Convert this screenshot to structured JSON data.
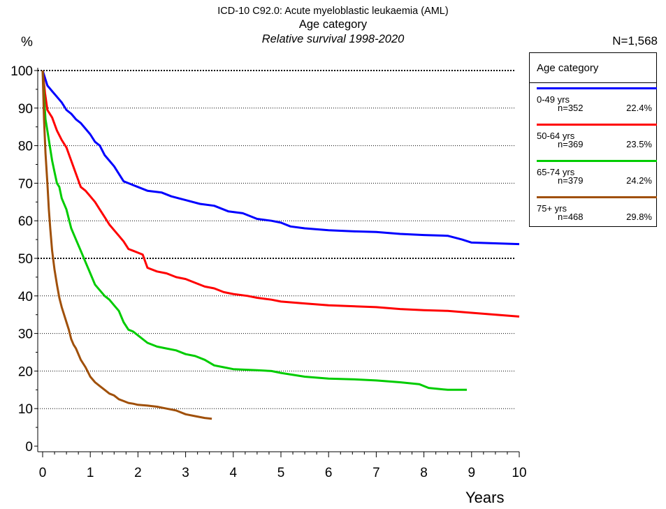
{
  "chart_data": {
    "type": "line",
    "title": "ICD-10 C92.0: Acute myeloblastic leukaemia (AML)",
    "subtitle": "Age category",
    "subtitle2": "Relative survival 1998-2020",
    "total_label": "N=1,568",
    "ylabel": "%",
    "xlabel": "Years",
    "xlim": [
      0,
      10
    ],
    "ylim": [
      0,
      100
    ],
    "x_ticks": [
      "0",
      "1",
      "2",
      "3",
      "4",
      "5",
      "6",
      "7",
      "8",
      "9",
      "10"
    ],
    "y_ticks": [
      "0",
      "10",
      "20",
      "30",
      "40",
      "50",
      "60",
      "70",
      "80",
      "90",
      "100"
    ],
    "grid": "horizontal dotted",
    "legend_placement": "right",
    "legend_title": "Age category",
    "series": [
      {
        "name": "0-49 yrs",
        "n_label": "n=352",
        "share_label": "22.4%",
        "color": "#0000ff",
        "x": [
          0,
          0.1,
          0.2,
          0.3,
          0.4,
          0.5,
          0.6,
          0.7,
          0.8,
          0.9,
          1.0,
          1.1,
          1.2,
          1.3,
          1.4,
          1.5,
          1.6,
          1.7,
          1.8,
          1.9,
          2.0,
          2.2,
          2.5,
          2.7,
          3.0,
          3.3,
          3.6,
          3.9,
          4.2,
          4.5,
          4.8,
          5.0,
          5.2,
          5.5,
          6.0,
          6.5,
          7.0,
          7.5,
          8.0,
          8.5,
          8.8,
          9.0,
          9.5,
          10.0
        ],
        "y": [
          100,
          96,
          94.5,
          93,
          91.5,
          89.5,
          88.5,
          87,
          86,
          84.5,
          83,
          81,
          80,
          77.5,
          76,
          74.5,
          72.5,
          70.5,
          70,
          69.5,
          69,
          68,
          67.5,
          66.5,
          65.5,
          64.5,
          64,
          62.5,
          62,
          60.5,
          60,
          59.5,
          58.5,
          58,
          57.5,
          57.2,
          57,
          56.5,
          56.2,
          56,
          55,
          54.2,
          54,
          53.8
        ]
      },
      {
        "name": "50-64 yrs",
        "n_label": "n=369",
        "share_label": "23.5%",
        "color": "#ff0000",
        "x": [
          0,
          0.05,
          0.1,
          0.15,
          0.2,
          0.3,
          0.4,
          0.5,
          0.6,
          0.7,
          0.8,
          0.9,
          1.0,
          1.1,
          1.2,
          1.3,
          1.4,
          1.5,
          1.6,
          1.7,
          1.8,
          1.9,
          2.0,
          2.1,
          2.2,
          2.4,
          2.6,
          2.8,
          3.0,
          3.2,
          3.4,
          3.6,
          3.8,
          4.0,
          4.3,
          4.5,
          4.8,
          5.0,
          5.5,
          6.0,
          7.0,
          7.5,
          8.0,
          8.5,
          9.0,
          10.0
        ],
        "y": [
          100,
          94,
          89.5,
          88.5,
          87.5,
          84,
          81.5,
          79.5,
          76,
          72.5,
          69,
          68,
          66.5,
          65,
          63,
          61,
          59,
          57.5,
          56,
          54.5,
          52.5,
          52,
          51.5,
          51,
          47.5,
          46.5,
          46,
          45,
          44.5,
          43.5,
          42.5,
          42,
          41,
          40.5,
          40,
          39.5,
          39,
          38.5,
          38,
          37.5,
          37,
          36.5,
          36.2,
          36,
          35.5,
          34.5
        ]
      },
      {
        "name": "65-74 yrs",
        "n_label": "n=379",
        "share_label": "24.2%",
        "color": "#00cc00",
        "x": [
          0,
          0.03,
          0.06,
          0.1,
          0.15,
          0.2,
          0.25,
          0.3,
          0.35,
          0.4,
          0.5,
          0.6,
          0.7,
          0.8,
          0.9,
          1.0,
          1.1,
          1.2,
          1.3,
          1.4,
          1.5,
          1.6,
          1.7,
          1.8,
          1.9,
          2.0,
          2.2,
          2.4,
          2.6,
          2.8,
          3.0,
          3.2,
          3.4,
          3.6,
          3.8,
          4.0,
          4.5,
          4.8,
          5.0,
          5.5,
          6.0,
          6.5,
          7.0,
          7.5,
          7.9,
          8.1,
          8.5,
          8.9
        ],
        "y": [
          100,
          93,
          87,
          84,
          80,
          76,
          73,
          70,
          69,
          66,
          63,
          58,
          55,
          52,
          49,
          46,
          43,
          41.5,
          40,
          39,
          37.5,
          36,
          33,
          31,
          30.5,
          29.5,
          27.5,
          26.5,
          26,
          25.5,
          24.5,
          24,
          23,
          21.5,
          21,
          20.5,
          20.2,
          20,
          19.5,
          18.5,
          18,
          17.8,
          17.5,
          17,
          16.5,
          15.5,
          15,
          15
        ]
      },
      {
        "name": "75+ yrs",
        "n_label": "n=468",
        "share_label": "29.8%",
        "color": "#a0500a",
        "x": [
          0,
          0.03,
          0.06,
          0.1,
          0.13,
          0.16,
          0.2,
          0.25,
          0.3,
          0.35,
          0.4,
          0.45,
          0.5,
          0.55,
          0.6,
          0.65,
          0.7,
          0.8,
          0.9,
          1.0,
          1.1,
          1.2,
          1.3,
          1.4,
          1.5,
          1.6,
          1.7,
          1.8,
          1.9,
          2.0,
          2.2,
          2.4,
          2.6,
          2.8,
          3.0,
          3.2,
          3.4,
          3.55
        ],
        "y": [
          100,
          87,
          78,
          70,
          63,
          58,
          52,
          47,
          43,
          39.5,
          37,
          35,
          33,
          31,
          28.5,
          27,
          26,
          23,
          21,
          18.5,
          17,
          16,
          15,
          14,
          13.5,
          12.5,
          12,
          11.5,
          11.3,
          11,
          10.8,
          10.5,
          10,
          9.5,
          8.5,
          8,
          7.5,
          7.3
        ]
      }
    ]
  }
}
